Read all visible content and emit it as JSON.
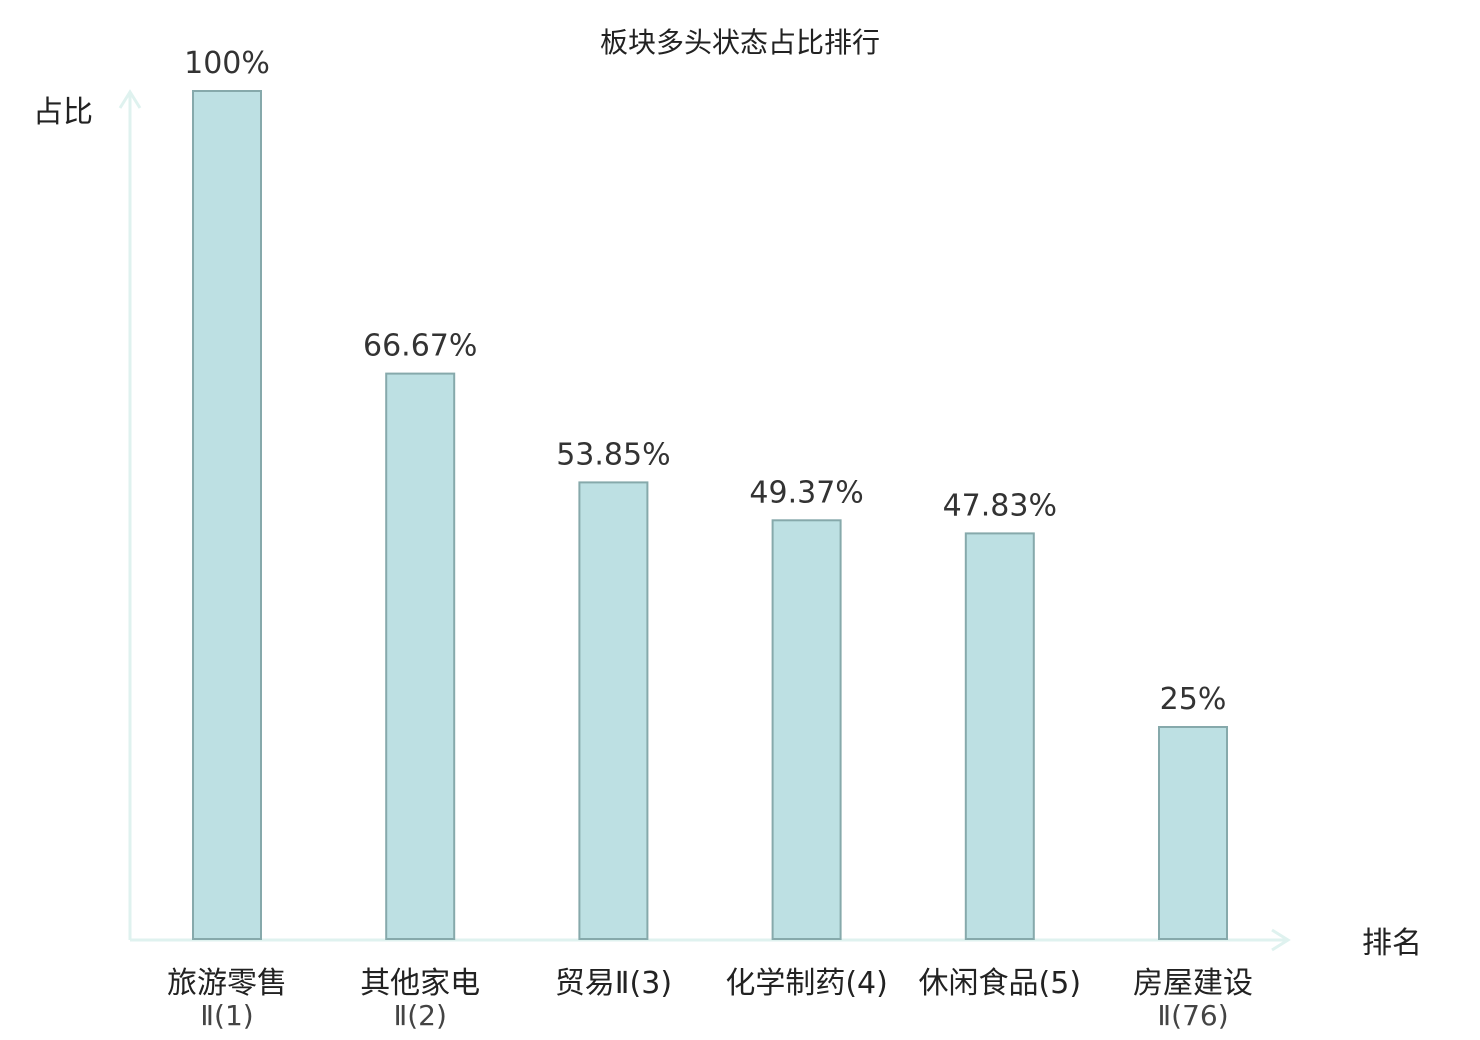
{
  "chart_data": {
    "type": "bar",
    "title": "板块多头状态占比排行",
    "ylabel": "占比",
    "xlabel": "排名",
    "ylim": [
      0,
      100
    ],
    "grid": false,
    "categories": [
      {
        "line1": "旅游零售",
        "line2": "Ⅱ(1)",
        "highlight": false
      },
      {
        "line1": "其他家电",
        "line2": "Ⅱ(2)",
        "highlight": false
      },
      {
        "line1": "贸易Ⅱ(3)",
        "line2": "",
        "highlight": false
      },
      {
        "line1": "化学制药(4)",
        "line2": "",
        "highlight": false
      },
      {
        "line1": "休闲食品(5)",
        "line2": "",
        "highlight": false
      },
      {
        "line1": "房屋建设",
        "line2": "Ⅱ(76)",
        "highlight": true
      }
    ],
    "values": [
      100,
      66.67,
      53.85,
      49.37,
      47.83,
      25
    ],
    "value_labels": [
      "100%",
      "66.67%",
      "53.85%",
      "49.37%",
      "47.83%",
      "25%"
    ]
  },
  "colors": {
    "bar_fill": "#bde0e3",
    "bar_stroke": "#86a9ab",
    "axis": "#dff2ef",
    "highlight": "#e0161b",
    "text": "#222222"
  }
}
